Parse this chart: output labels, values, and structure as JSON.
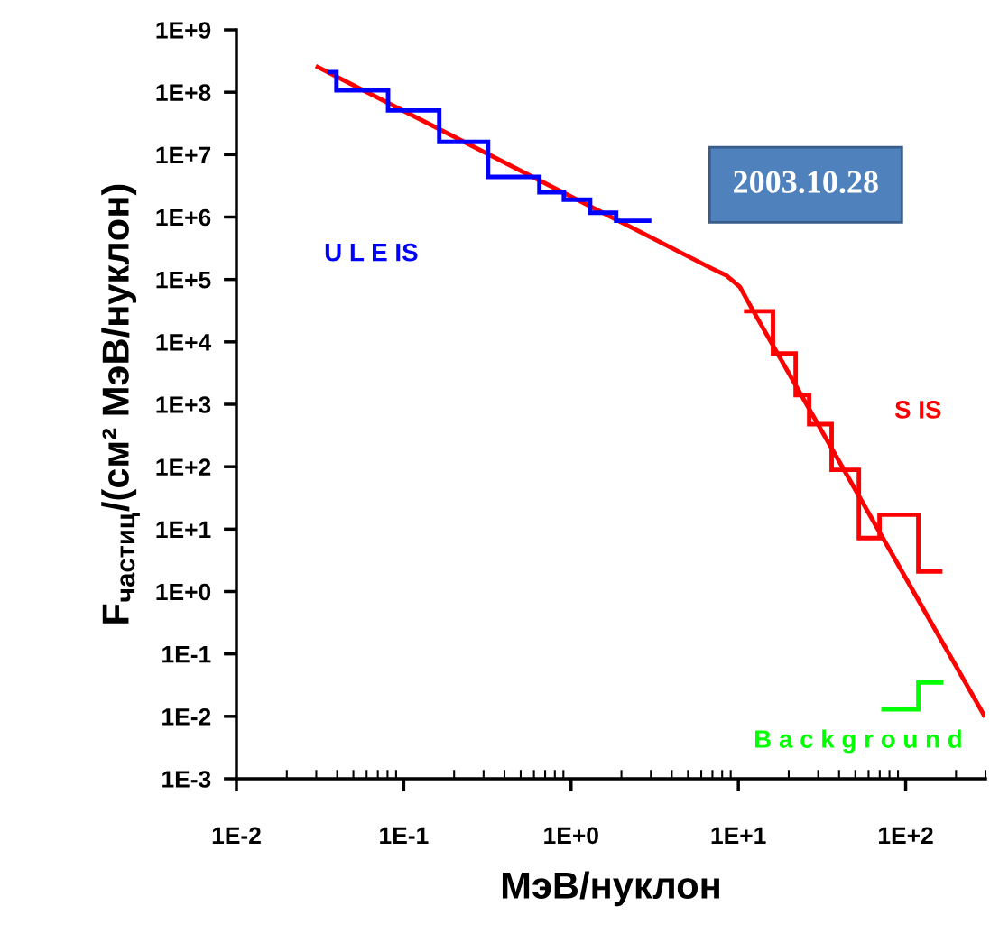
{
  "chart_data": {
    "type": "line",
    "log": "xy",
    "xlabel": "МэВ/нуклон",
    "ylabel": "F$_{частиц}$/(см² МэВ/нуклон)",
    "xlim": [
      0.01,
      300
    ],
    "ylim": [
      0.001,
      1000000000
    ],
    "xticks": [
      {
        "value": 0.01,
        "label": "1E-2"
      },
      {
        "value": 0.1,
        "label": "1E-1"
      },
      {
        "value": 1,
        "label": "1E+0"
      },
      {
        "value": 10,
        "label": "1E+1"
      },
      {
        "value": 100,
        "label": "1E+2"
      }
    ],
    "yticks": [
      {
        "value": 0.001,
        "label": "1E-3"
      },
      {
        "value": 0.01,
        "label": "1E-2"
      },
      {
        "value": 0.1,
        "label": "1E-1"
      },
      {
        "value": 1,
        "label": "1E+0"
      },
      {
        "value": 10,
        "label": "1E+1"
      },
      {
        "value": 100,
        "label": "1E+2"
      },
      {
        "value": 1000,
        "label": "1E+3"
      },
      {
        "value": 10000,
        "label": "1E+4"
      },
      {
        "value": 100000,
        "label": "1E+5"
      },
      {
        "value": 1000000,
        "label": "1E+6"
      },
      {
        "value": 10000000,
        "label": "1E+7"
      },
      {
        "value": 100000000,
        "label": "1E+8"
      },
      {
        "value": 1000000000,
        "label": "1E+9"
      }
    ],
    "annotations": [
      "2003.10.28"
    ],
    "series": [
      {
        "color": "#ff0000",
        "x": [
          0.0298,
          7.0,
          8.45,
          10.2,
          12.3,
          298
        ],
        "values": [
          263000000,
          148000,
          117000,
          76000,
          31000,
          0.0098
        ]
      },
      {
        "name": "U L E IS",
        "color": "#0000ff",
        "x": [
          0.035,
          0.0396,
          0.0396,
          0.0806,
          0.0806,
          0.163,
          0.163,
          0.319,
          0.319,
          0.647,
          0.647,
          0.906,
          0.906,
          1.3,
          1.3,
          1.86,
          1.86,
          3.02
        ],
        "values": [
          210000000,
          210000000,
          107000000,
          107000000,
          51000000,
          51000000,
          16000000,
          16000000,
          4400000,
          4400000,
          2500000,
          2500000,
          1900000,
          1900000,
          1170000,
          1170000,
          870000,
          870000
        ]
      },
      {
        "name": "S IS",
        "color": "#ff0000",
        "x": [
          10.8,
          16.1,
          16.1,
          22.0,
          22.0,
          26.5,
          26.5,
          36.1,
          36.1,
          52.5,
          52.5,
          69.8,
          69.8,
          119,
          119,
          166
        ],
        "values": [
          31000,
          31000,
          6500,
          6500,
          1400,
          1400,
          480,
          480,
          89,
          89,
          7.2,
          7.2,
          17,
          17,
          2.1,
          2.1
        ]
      },
      {
        "name": "B a c k g r o u n d",
        "color": "#00ff00",
        "x": [
          71.5,
          119,
          119,
          168
        ],
        "values": [
          0.013,
          0.013,
          0.035,
          0.035
        ]
      }
    ]
  }
}
